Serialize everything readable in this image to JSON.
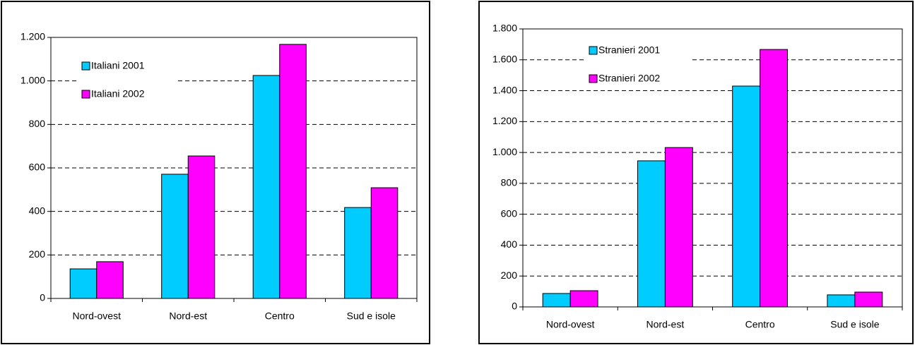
{
  "chart_data": [
    {
      "type": "bar",
      "categories": [
        "Nord-ovest",
        "Nord-est",
        "Centro",
        "Sud e isole"
      ],
      "series": [
        {
          "name": "Italiani 2001",
          "color": "#00ccff",
          "values": [
            136,
            571,
            1025,
            418
          ]
        },
        {
          "name": "Italiani 2002",
          "color": "#ff00ff",
          "values": [
            169,
            655,
            1168,
            509
          ]
        }
      ],
      "ylim": [
        0,
        1200
      ],
      "yticks": [
        0,
        200,
        400,
        600,
        800,
        {
          "value": 1000,
          "label": "1.000"
        },
        {
          "value": 1200,
          "label": "1.200"
        }
      ],
      "grid": true,
      "legend": "upper left"
    },
    {
      "type": "bar",
      "categories": [
        "Nord-ovest",
        "Nord-est",
        "Centro",
        "Sud e isole"
      ],
      "series": [
        {
          "name": "Stranieri 2001",
          "color": "#00ccff",
          "values": [
            87,
            946,
            1430,
            78
          ]
        },
        {
          "name": "Stranieri 2002",
          "color": "#ff00ff",
          "values": [
            105,
            1032,
            1667,
            96
          ]
        }
      ],
      "ylim": [
        0,
        1800
      ],
      "yticks": [
        0,
        200,
        400,
        600,
        800,
        {
          "value": 1000,
          "label": "1.000"
        },
        {
          "value": 1200,
          "label": "1.200"
        },
        {
          "value": 1400,
          "label": "1.400"
        },
        {
          "value": 1600,
          "label": "1.600"
        },
        {
          "value": 1800,
          "label": "1.800"
        }
      ],
      "grid": true,
      "legend": "upper left"
    }
  ]
}
